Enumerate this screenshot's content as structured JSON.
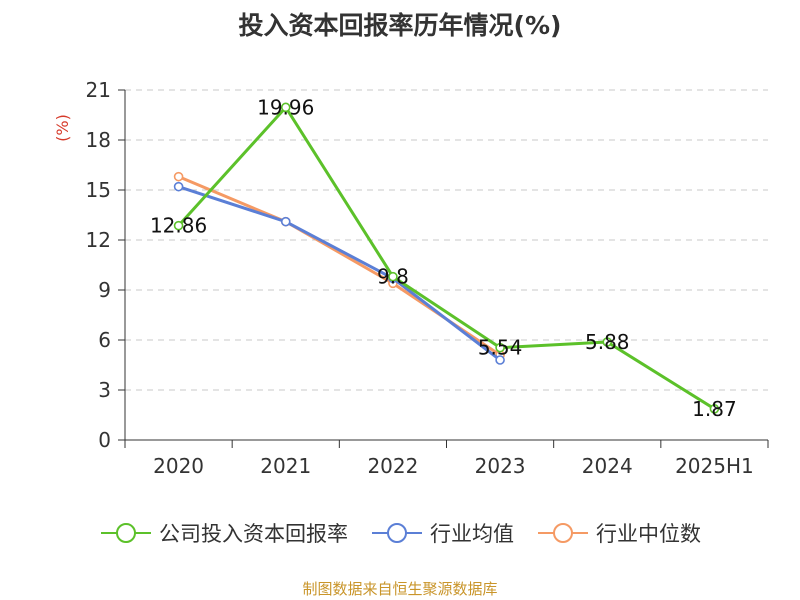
{
  "chart_data": {
    "type": "line",
    "title": "投入资本回报率历年情况(%)",
    "ylabel": "(%)",
    "categories": [
      "2020",
      "2021",
      "2022",
      "2023",
      "2024",
      "2025H1"
    ],
    "ylim": [
      0,
      21
    ],
    "yticks": [
      0,
      3,
      6,
      9,
      12,
      15,
      18,
      21
    ],
    "grid": true,
    "legend_position": "bottom",
    "series": [
      {
        "name": "公司投入资本回报率",
        "color": "#5cc12a",
        "values": [
          12.86,
          19.96,
          9.8,
          5.54,
          5.88,
          1.87
        ],
        "labels": [
          "12.86",
          "19.96",
          "9.8",
          "5.54",
          "5.88",
          "1.87"
        ]
      },
      {
        "name": "行业均值",
        "color": "#5b7fd6",
        "values": [
          15.2,
          13.1,
          9.7,
          4.8,
          null,
          null
        ]
      },
      {
        "name": "行业中位数",
        "color": "#f59a64",
        "values": [
          15.8,
          13.1,
          9.4,
          5.1,
          null,
          null
        ]
      }
    ],
    "source": "制图数据来自恒生聚源数据库"
  }
}
